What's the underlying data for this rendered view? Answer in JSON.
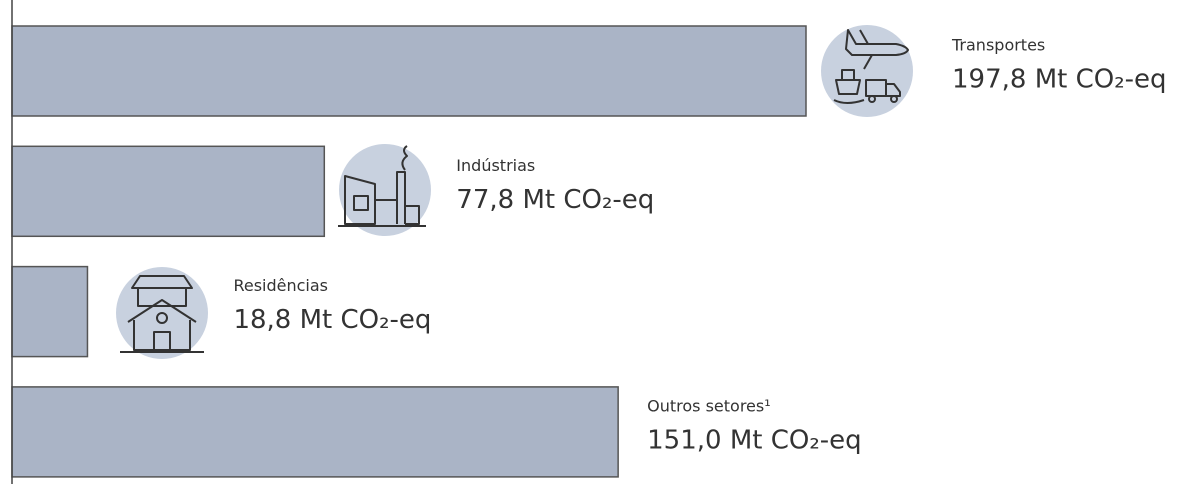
{
  "chart_data": {
    "type": "barh",
    "categories": [
      "Transportes",
      "Indústrias",
      "Residências",
      "Outros setores¹"
    ],
    "values": [
      197.8,
      77.8,
      18.8,
      151.0
    ],
    "value_labels": [
      "197,8 Mt CO₂-eq",
      "77,8 Mt CO₂-eq",
      "18,8 Mt CO₂-eq",
      "151,0 Mt CO₂-eq"
    ],
    "color": "#aab4c6"
  }
}
